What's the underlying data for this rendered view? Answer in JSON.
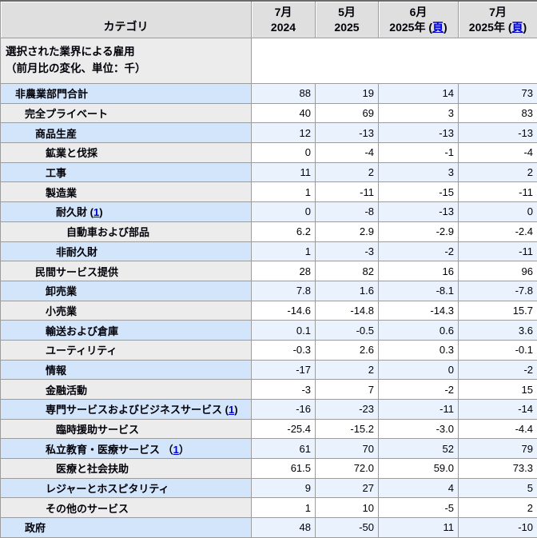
{
  "table": {
    "category_header": "カテゴリ",
    "columns": [
      {
        "month": "7月",
        "year": "2024",
        "link": "",
        "link_pre": "",
        "link_post": ""
      },
      {
        "month": "5月",
        "year": "2025",
        "link": "",
        "link_pre": "",
        "link_post": ""
      },
      {
        "month": "6月",
        "year": "2025年",
        "link": "頁",
        "link_pre": " (",
        "link_post": ")"
      },
      {
        "month": "7月",
        "year": "2025年",
        "link": "頁",
        "link_pre": " (",
        "link_post": ")"
      }
    ],
    "subtitle_line1": "選択された業界による雇用",
    "subtitle_line2": "（前月比の変化、単位：千）",
    "rows": [
      {
        "label": "非農業部門合計",
        "indent": 1,
        "link": "",
        "link_pre": "",
        "link_post": "",
        "values": [
          "88",
          "19",
          "14",
          "73"
        ]
      },
      {
        "label": "完全プライベート",
        "indent": 2,
        "link": "",
        "link_pre": "",
        "link_post": "",
        "values": [
          "40",
          "69",
          "3",
          "83"
        ]
      },
      {
        "label": "商品生産",
        "indent": 3,
        "link": "",
        "link_pre": "",
        "link_post": "",
        "values": [
          "12",
          "-13",
          "-13",
          "-13"
        ]
      },
      {
        "label": "鉱業と伐採",
        "indent": 4,
        "link": "",
        "link_pre": "",
        "link_post": "",
        "values": [
          "0",
          "-4",
          "-1",
          "-4"
        ]
      },
      {
        "label": "工事",
        "indent": 4,
        "link": "",
        "link_pre": "",
        "link_post": "",
        "values": [
          "11",
          "2",
          "3",
          "2"
        ]
      },
      {
        "label": "製造業",
        "indent": 4,
        "link": "",
        "link_pre": "",
        "link_post": "",
        "values": [
          "1",
          "-11",
          "-15",
          "-11"
        ]
      },
      {
        "label": "耐久財",
        "indent": 5,
        "link": "1",
        "link_pre": " (",
        "link_post": ")",
        "values": [
          "0",
          "-8",
          "-13",
          "0"
        ]
      },
      {
        "label": "自動車および部品",
        "indent": 6,
        "link": "",
        "link_pre": "",
        "link_post": "",
        "values": [
          "6.2",
          "2.9",
          "-2.9",
          "-2.4"
        ]
      },
      {
        "label": "非耐久財",
        "indent": 5,
        "link": "",
        "link_pre": "",
        "link_post": "",
        "values": [
          "1",
          "-3",
          "-2",
          "-11"
        ]
      },
      {
        "label": "民間サービス提供",
        "indent": 3,
        "link": "",
        "link_pre": "",
        "link_post": "",
        "values": [
          "28",
          "82",
          "16",
          "96"
        ]
      },
      {
        "label": "卸売業",
        "indent": 4,
        "link": "",
        "link_pre": "",
        "link_post": "",
        "values": [
          "7.8",
          "1.6",
          "-8.1",
          "-7.8"
        ]
      },
      {
        "label": "小売業",
        "indent": 4,
        "link": "",
        "link_pre": "",
        "link_post": "",
        "values": [
          "-14.6",
          "-14.8",
          "-14.3",
          "15.7"
        ]
      },
      {
        "label": "輸送および倉庫",
        "indent": 4,
        "link": "",
        "link_pre": "",
        "link_post": "",
        "values": [
          "0.1",
          "-0.5",
          "0.6",
          "3.6"
        ]
      },
      {
        "label": "ユーティリティ",
        "indent": 4,
        "link": "",
        "link_pre": "",
        "link_post": "",
        "values": [
          "-0.3",
          "2.6",
          "0.3",
          "-0.1"
        ]
      },
      {
        "label": "情報",
        "indent": 4,
        "link": "",
        "link_pre": "",
        "link_post": "",
        "values": [
          "-17",
          "2",
          "0",
          "-2"
        ]
      },
      {
        "label": "金融活動",
        "indent": 4,
        "link": "",
        "link_pre": "",
        "link_post": "",
        "values": [
          "-3",
          "7",
          "-2",
          "15"
        ]
      },
      {
        "label": "専門サービスおよびビジネスサービス",
        "indent": 4,
        "link": "1",
        "link_pre": " (",
        "link_post": ")",
        "values": [
          "-16",
          "-23",
          "-11",
          "-14"
        ]
      },
      {
        "label": "臨時援助サービス",
        "indent": 5,
        "link": "",
        "link_pre": "",
        "link_post": "",
        "values": [
          "-25.4",
          "-15.2",
          "-3.0",
          "-4.4"
        ]
      },
      {
        "label": "私立教育・医療サービス",
        "indent": 4,
        "link": "1",
        "link_pre": " （",
        "link_post": "）",
        "values": [
          "61",
          "70",
          "52",
          "79"
        ]
      },
      {
        "label": "医療と社会扶助",
        "indent": 5,
        "link": "",
        "link_pre": "",
        "link_post": "",
        "values": [
          "61.5",
          "72.0",
          "59.0",
          "73.3"
        ]
      },
      {
        "label": "レジャーとホスピタリティ",
        "indent": 4,
        "link": "",
        "link_pre": "",
        "link_post": "",
        "values": [
          "9",
          "27",
          "4",
          "5"
        ]
      },
      {
        "label": "その他のサービス",
        "indent": 4,
        "link": "",
        "link_pre": "",
        "link_post": "",
        "values": [
          "1",
          "10",
          "-5",
          "2"
        ]
      },
      {
        "label": "政府",
        "indent": 2,
        "link": "",
        "link_pre": "",
        "link_post": "",
        "values": [
          "48",
          "-50",
          "11",
          "-10"
        ]
      }
    ]
  }
}
